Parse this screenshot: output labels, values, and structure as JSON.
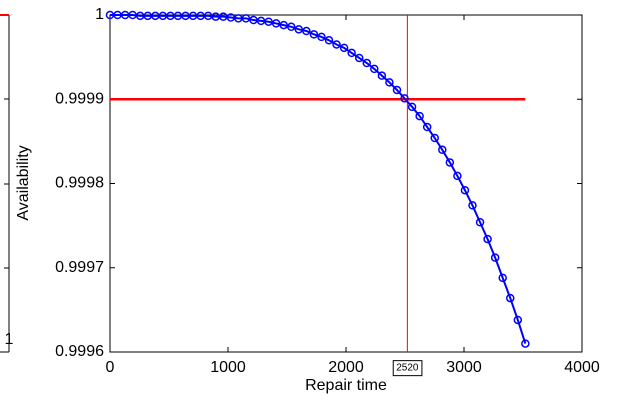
{
  "chart_data": {
    "type": "line",
    "x_label": "Repair time",
    "y_label": "Availability",
    "xlim": [
      0,
      4000
    ],
    "xticks": [
      0,
      1000,
      2000,
      3000,
      4000
    ],
    "ylim": [
      0.9996,
      1
    ],
    "yticks": [
      0.9996,
      0.9997,
      0.9998,
      0.9999,
      1
    ],
    "grid": false,
    "series": [
      {
        "color": "#0000ff",
        "marker": "circle",
        "x": [
          0,
          64,
          128,
          192,
          256,
          320,
          384,
          448,
          512,
          576,
          640,
          704,
          768,
          832,
          896,
          960,
          1024,
          1088,
          1152,
          1216,
          1280,
          1344,
          1408,
          1472,
          1536,
          1600,
          1664,
          1728,
          1792,
          1856,
          1920,
          1984,
          2048,
          2112,
          2176,
          2240,
          2304,
          2368,
          2432,
          2496,
          2560,
          2624,
          2688,
          2752,
          2816,
          2880,
          2944,
          3008,
          3072,
          3136,
          3200,
          3264,
          3328,
          3392,
          3456,
          3520
        ],
        "values": [
          1,
          1,
          1,
          1,
          0.999999,
          0.999999,
          0.999999,
          0.999999,
          0.999999,
          0.999999,
          0.999999,
          0.999999,
          0.999999,
          0.999999,
          0.999998,
          0.999998,
          0.999997,
          0.999996,
          0.999996,
          0.999994,
          0.999993,
          0.999992,
          0.99999,
          0.999988,
          0.999986,
          0.999983,
          0.999981,
          0.999977,
          0.999974,
          0.99997,
          0.999965,
          0.999961,
          0.999955,
          0.999949,
          0.999943,
          0.999936,
          0.999928,
          0.99992,
          0.999911,
          0.999901,
          0.999891,
          0.99988,
          0.999867,
          0.999854,
          0.99984,
          0.999825,
          0.999809,
          0.999792,
          0.999774,
          0.999754,
          0.999734,
          0.999712,
          0.999688,
          0.999664,
          0.999638,
          0.99961
        ]
      }
    ],
    "threshold": {
      "y": 0.9999,
      "x": [
        0,
        3520
      ],
      "color": "#ff0000"
    },
    "marker_line": {
      "x": 2520,
      "color": "#ff0000"
    }
  },
  "left_panel": {
    "xticks": [
      1
    ]
  }
}
